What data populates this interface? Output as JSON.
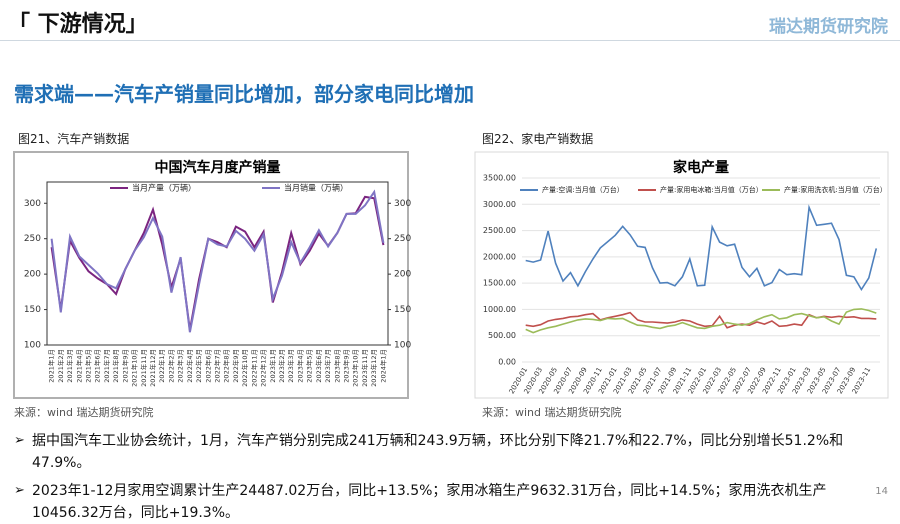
{
  "header": {
    "title": "「 下游情况」",
    "logo": "瑞达期货研究院",
    "subtitle": "需求端——汽车产销量同比增加，部分家电同比增加"
  },
  "figures": [
    {
      "label": "图21、汽车产销数据",
      "source": "来源：wind  瑞达期货研究院"
    },
    {
      "label": "图22、家电产销数据",
      "source": "来源：wind  瑞达期货研究院"
    }
  ],
  "chart_data": [
    {
      "type": "line",
      "title": "中国汽车月度产销量",
      "categories": [
        "2021年1月",
        "2021年2月",
        "2021年3月",
        "2021年4月",
        "2021年5月",
        "2021年6月",
        "2021年7月",
        "2021年8月",
        "2021年9月",
        "2021年10月",
        "2021年11月",
        "2021年12月",
        "2022年1月",
        "2022年2月",
        "2022年3月",
        "2022年4月",
        "2022年5月",
        "2022年6月",
        "2022年7月",
        "2022年8月",
        "2022年9月",
        "2022年10月",
        "2022年11月",
        "2022年12月",
        "2023年1月",
        "2023年2月",
        "2023年3月",
        "2023年4月",
        "2023年5月",
        "2023年6月",
        "2023年7月",
        "2023年8月",
        "2023年9月",
        "2023年10月",
        "2023年11月",
        "2023年12月",
        "2024年1月"
      ],
      "series": [
        {
          "name": "当月产量（万辆）",
          "color": "#7b2580",
          "values": [
            238,
            150,
            247,
            223,
            204,
            194,
            186,
            172,
            207,
            233,
            258,
            291,
            242,
            181,
            222,
            121,
            193,
            250,
            245,
            238,
            267,
            260,
            238,
            260,
            160,
            203,
            258,
            214,
            233,
            257,
            240,
            258,
            285,
            286,
            309,
            307,
            241
          ]
        },
        {
          "name": "当月销量（万辆）",
          "color": "#7f74c4",
          "values": [
            250,
            146,
            253,
            225,
            213,
            201,
            186,
            180,
            207,
            233,
            252,
            279,
            253,
            174,
            224,
            118,
            186,
            250,
            242,
            239,
            261,
            250,
            233,
            256,
            165,
            198,
            245,
            216,
            238,
            262,
            239,
            258,
            285,
            285,
            297,
            316,
            244
          ]
        }
      ],
      "ylim": [
        100,
        330
      ],
      "yticks": [
        100,
        150,
        200,
        250,
        300
      ],
      "y2lim": [
        100,
        330
      ],
      "y2ticks": [
        100,
        150,
        200,
        250,
        300
      ],
      "grid": false,
      "legend": "top"
    },
    {
      "type": "line",
      "title": "家电产量",
      "categories": [
        "2020-01",
        null,
        "2020-03",
        null,
        "2020-05",
        null,
        "2020-07",
        null,
        "2020-09",
        null,
        "2020-11",
        null,
        "2021-01",
        null,
        "2021-03",
        null,
        "2021-05",
        null,
        "2021-07",
        null,
        "2021-09",
        null,
        "2021-11",
        null,
        "2022-01",
        null,
        "2022-03",
        null,
        "2022-05",
        null,
        "2022-07",
        null,
        "2022-09",
        null,
        "2022-11",
        null,
        "2023-01",
        null,
        "2023-03",
        null,
        "2023-05",
        null,
        "2023-07",
        null,
        "2023-09",
        null,
        "2023-11",
        null
      ],
      "series": [
        {
          "name": "产量:空调:当月值（万台）",
          "color": "#4f81bd",
          "values": [
            1930,
            1900,
            1940,
            2490,
            1880,
            1540,
            1700,
            1450,
            1720,
            1960,
            2170,
            2290,
            2410,
            2580,
            2420,
            2200,
            2180,
            1790,
            1500,
            1510,
            1450,
            1620,
            1960,
            1450,
            1460,
            2570,
            2280,
            2210,
            2240,
            1800,
            1620,
            1780,
            1450,
            1510,
            1760,
            1660,
            1680,
            1660,
            2940,
            2600,
            2620,
            2640,
            2330,
            1650,
            1620,
            1380,
            1600,
            2160
          ]
        },
        {
          "name": "产量:家用电冰箱:当月值（万台）",
          "color": "#c0504d",
          "values": [
            700,
            680,
            710,
            780,
            810,
            830,
            860,
            870,
            900,
            920,
            800,
            840,
            870,
            900,
            940,
            800,
            760,
            760,
            750,
            740,
            760,
            800,
            780,
            720,
            680,
            690,
            870,
            650,
            700,
            720,
            700,
            760,
            720,
            780,
            680,
            690,
            720,
            700,
            900,
            840,
            870,
            850,
            870,
            850,
            860,
            830,
            830,
            820
          ]
        },
        {
          "name": "产量:家用洗衣机:当月值（万台）",
          "color": "#9bbb59",
          "values": [
            620,
            560,
            610,
            650,
            680,
            720,
            760,
            800,
            820,
            810,
            790,
            830,
            820,
            830,
            760,
            700,
            690,
            660,
            640,
            680,
            700,
            750,
            700,
            650,
            640,
            680,
            700,
            750,
            720,
            700,
            730,
            800,
            860,
            900,
            820,
            840,
            900,
            920,
            880,
            840,
            860,
            780,
            720,
            950,
            1000,
            1010,
            980,
            930
          ]
        }
      ],
      "ylim": [
        0,
        3500
      ],
      "yticks": [
        {
          "value": 0,
          "label": "0.00"
        },
        {
          "value": 500,
          "label": "500.00"
        },
        {
          "value": 1000,
          "label": "1000.00"
        },
        {
          "value": 1500,
          "label": "1500.00"
        },
        {
          "value": 2000,
          "label": "2000.00"
        },
        {
          "value": 2500,
          "label": "2500.00"
        },
        {
          "value": 3000,
          "label": "3000.00"
        },
        {
          "value": 3500,
          "label": "3500.00"
        }
      ],
      "grid": true,
      "legend": "top"
    }
  ],
  "bullets": [
    "据中国汽车工业协会统计，1月，汽车产销分别完成241万辆和243.9万辆，环比分别下降21.7%和22.7%，同比分别增长51.2%和47.9%。",
    "2023年1-12月家用空调累计生产24487.02万台，同比+13.5%；家用冰箱生产9632.31万台，同比+14.5%；家用洗衣机生产10456.32万台，同比+19.3%。"
  ],
  "page_number": "14"
}
